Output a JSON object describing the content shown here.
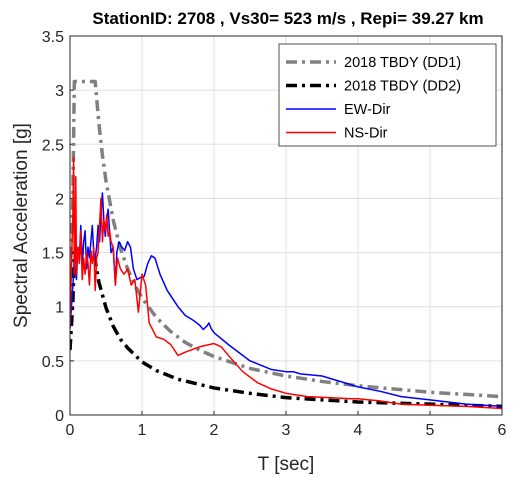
{
  "chart_data": {
    "type": "line",
    "title": "StationID: 2708 , Vs30= 523 m/s , Repi= 39.27 km",
    "xlabel": "T [sec]",
    "ylabel": "Spectral Acceleration [g]",
    "xlim": [
      0,
      6
    ],
    "ylim": [
      0,
      3.5
    ],
    "xticks": [
      0,
      1,
      2,
      3,
      4,
      5,
      6
    ],
    "xtick_labels": [
      "0",
      "1",
      "2",
      "3",
      "4",
      "5",
      "6"
    ],
    "yticks": [
      0,
      0.5,
      1,
      1.5,
      2,
      2.5,
      3,
      3.5
    ],
    "ytick_labels": [
      "0",
      "0.5",
      "1",
      "1.5",
      "2",
      "2.5",
      "3",
      "3.5"
    ],
    "grid": true,
    "legend_position": "top-right",
    "series": [
      {
        "name": "2018 TBDY (DD1)",
        "color": "#808080",
        "style": "dash-dot",
        "points": [
          [
            0,
            1.23
          ],
          [
            0.02,
            1.61
          ],
          [
            0.04,
            2.0
          ],
          [
            0.06,
            3.08
          ],
          [
            0.1,
            3.08
          ],
          [
            0.2,
            3.08
          ],
          [
            0.3,
            3.08
          ],
          [
            0.35,
            3.08
          ],
          [
            0.4,
            2.7
          ],
          [
            0.45,
            2.4
          ],
          [
            0.5,
            2.16
          ],
          [
            0.6,
            1.8
          ],
          [
            0.7,
            1.54
          ],
          [
            0.8,
            1.35
          ],
          [
            0.9,
            1.2
          ],
          [
            1.0,
            1.08
          ],
          [
            1.2,
            0.9
          ],
          [
            1.4,
            0.77
          ],
          [
            1.6,
            0.67
          ],
          [
            1.8,
            0.6
          ],
          [
            2.0,
            0.54
          ],
          [
            2.5,
            0.43
          ],
          [
            3.0,
            0.36
          ],
          [
            3.5,
            0.31
          ],
          [
            4.0,
            0.27
          ],
          [
            4.5,
            0.24
          ],
          [
            5.0,
            0.21
          ],
          [
            5.5,
            0.19
          ],
          [
            6.0,
            0.17
          ]
        ]
      },
      {
        "name": "2018 TBDY (DD2)",
        "color": "#000000",
        "style": "dash-dot",
        "points": [
          [
            0,
            0.6
          ],
          [
            0.02,
            0.83
          ],
          [
            0.04,
            1.05
          ],
          [
            0.06,
            1.5
          ],
          [
            0.1,
            1.5
          ],
          [
            0.2,
            1.5
          ],
          [
            0.3,
            1.5
          ],
          [
            0.33,
            1.5
          ],
          [
            0.4,
            1.23
          ],
          [
            0.5,
            0.99
          ],
          [
            0.6,
            0.82
          ],
          [
            0.7,
            0.7
          ],
          [
            0.8,
            0.62
          ],
          [
            1.0,
            0.49
          ],
          [
            1.2,
            0.41
          ],
          [
            1.5,
            0.33
          ],
          [
            2.0,
            0.25
          ],
          [
            2.5,
            0.2
          ],
          [
            3.0,
            0.16
          ],
          [
            3.5,
            0.14
          ],
          [
            4.0,
            0.12
          ],
          [
            4.5,
            0.11
          ],
          [
            5.0,
            0.1
          ],
          [
            5.5,
            0.09
          ],
          [
            6.0,
            0.08
          ]
        ]
      },
      {
        "name": "EW-Dir",
        "color": "#0000ff",
        "style": "solid",
        "points": [
          [
            0,
            0.8
          ],
          [
            0.03,
            1.1
          ],
          [
            0.05,
            1.3
          ],
          [
            0.07,
            1.7
          ],
          [
            0.09,
            1.25
          ],
          [
            0.11,
            1.55
          ],
          [
            0.13,
            1.45
          ],
          [
            0.15,
            1.75
          ],
          [
            0.17,
            1.4
          ],
          [
            0.19,
            1.6
          ],
          [
            0.21,
            1.7
          ],
          [
            0.23,
            1.35
          ],
          [
            0.25,
            1.55
          ],
          [
            0.27,
            1.45
          ],
          [
            0.29,
            1.6
          ],
          [
            0.31,
            1.75
          ],
          [
            0.33,
            1.5
          ],
          [
            0.35,
            1.45
          ],
          [
            0.37,
            1.55
          ],
          [
            0.39,
            1.75
          ],
          [
            0.41,
            1.6
          ],
          [
            0.43,
            1.85
          ],
          [
            0.45,
            2.05
          ],
          [
            0.47,
            1.8
          ],
          [
            0.49,
            1.65
          ],
          [
            0.51,
            1.8
          ],
          [
            0.53,
            1.9
          ],
          [
            0.55,
            1.7
          ],
          [
            0.57,
            1.5
          ],
          [
            0.6,
            1.55
          ],
          [
            0.63,
            1.2
          ],
          [
            0.65,
            1.5
          ],
          [
            0.68,
            1.6
          ],
          [
            0.72,
            1.55
          ],
          [
            0.76,
            1.52
          ],
          [
            0.8,
            1.6
          ],
          [
            0.84,
            1.55
          ],
          [
            0.88,
            1.35
          ],
          [
            0.93,
            1.25
          ],
          [
            0.98,
            1.27
          ],
          [
            1.03,
            1.28
          ],
          [
            1.08,
            1.4
          ],
          [
            1.13,
            1.47
          ],
          [
            1.18,
            1.45
          ],
          [
            1.25,
            1.3
          ],
          [
            1.35,
            1.15
          ],
          [
            1.5,
            1.0
          ],
          [
            1.6,
            0.92
          ],
          [
            1.7,
            0.88
          ],
          [
            1.8,
            0.83
          ],
          [
            1.85,
            0.79
          ],
          [
            1.9,
            0.82
          ],
          [
            1.93,
            0.85
          ],
          [
            1.96,
            0.8
          ],
          [
            2.0,
            0.76
          ],
          [
            2.2,
            0.65
          ],
          [
            2.5,
            0.5
          ],
          [
            2.8,
            0.42
          ],
          [
            3.0,
            0.4
          ],
          [
            3.1,
            0.4
          ],
          [
            3.2,
            0.38
          ],
          [
            3.5,
            0.36
          ],
          [
            3.8,
            0.3
          ],
          [
            4.0,
            0.26
          ],
          [
            4.3,
            0.22
          ],
          [
            4.6,
            0.17
          ],
          [
            5.0,
            0.14
          ],
          [
            5.5,
            0.1
          ],
          [
            6.0,
            0.08
          ]
        ]
      },
      {
        "name": "NS-Dir",
        "color": "#ff0000",
        "style": "solid",
        "points": [
          [
            0,
            0.8
          ],
          [
            0.02,
            1.4
          ],
          [
            0.04,
            1.85
          ],
          [
            0.05,
            2.38
          ],
          [
            0.06,
            1.3
          ],
          [
            0.07,
            1.65
          ],
          [
            0.08,
            2.2
          ],
          [
            0.09,
            1.3
          ],
          [
            0.11,
            1.55
          ],
          [
            0.13,
            1.4
          ],
          [
            0.15,
            1.7
          ],
          [
            0.17,
            1.25
          ],
          [
            0.19,
            1.45
          ],
          [
            0.21,
            1.3
          ],
          [
            0.23,
            1.5
          ],
          [
            0.25,
            1.4
          ],
          [
            0.27,
            1.2
          ],
          [
            0.29,
            1.5
          ],
          [
            0.31,
            1.4
          ],
          [
            0.33,
            1.55
          ],
          [
            0.35,
            1.15
          ],
          [
            0.37,
            1.45
          ],
          [
            0.39,
            1.5
          ],
          [
            0.41,
            1.75
          ],
          [
            0.43,
            2.0
          ],
          [
            0.45,
            1.6
          ],
          [
            0.47,
            1.8
          ],
          [
            0.49,
            1.7
          ],
          [
            0.51,
            1.85
          ],
          [
            0.53,
            1.65
          ],
          [
            0.55,
            1.7
          ],
          [
            0.57,
            1.6
          ],
          [
            0.6,
            1.55
          ],
          [
            0.63,
            1.2
          ],
          [
            0.66,
            1.45
          ],
          [
            0.7,
            1.35
          ],
          [
            0.75,
            1.3
          ],
          [
            0.8,
            1.35
          ],
          [
            0.85,
            1.2
          ],
          [
            0.9,
            1.25
          ],
          [
            0.95,
            0.95
          ],
          [
            1.0,
            1.3
          ],
          [
            1.05,
            1.2
          ],
          [
            1.1,
            0.85
          ],
          [
            1.2,
            0.72
          ],
          [
            1.3,
            0.7
          ],
          [
            1.4,
            0.65
          ],
          [
            1.5,
            0.55
          ],
          [
            1.6,
            0.58
          ],
          [
            1.8,
            0.63
          ],
          [
            2.0,
            0.66
          ],
          [
            2.1,
            0.63
          ],
          [
            2.2,
            0.55
          ],
          [
            2.4,
            0.4
          ],
          [
            2.6,
            0.3
          ],
          [
            2.8,
            0.24
          ],
          [
            3.0,
            0.2
          ],
          [
            3.3,
            0.17
          ],
          [
            3.6,
            0.16
          ],
          [
            3.9,
            0.15
          ],
          [
            4.0,
            0.15
          ],
          [
            4.3,
            0.13
          ],
          [
            4.6,
            0.1
          ],
          [
            5.0,
            0.09
          ],
          [
            5.5,
            0.08
          ],
          [
            6.0,
            0.06
          ]
        ]
      }
    ]
  }
}
